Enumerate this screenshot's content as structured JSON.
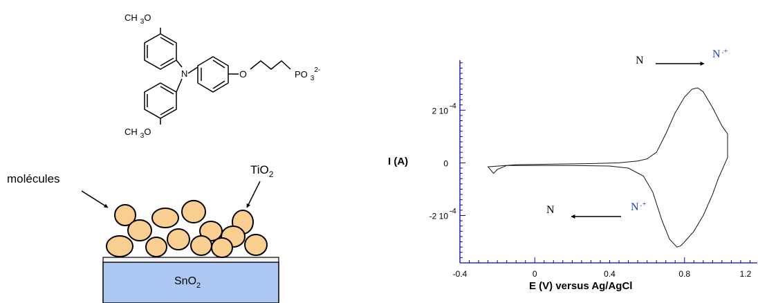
{
  "molecule": {
    "methoxy_top": {
      "ch": "CH",
      "sub": "3",
      "o": "O"
    },
    "methoxy_bottom": {
      "ch": "CH",
      "sub": "3",
      "o": "O"
    },
    "nitrogen": "N",
    "ether_oxygen": "O",
    "phosphonate": {
      "po": "PO",
      "sub": "3",
      "sup": "2-"
    }
  },
  "electrode": {
    "molecules_label": "molécules",
    "tio2_label": {
      "base": "TiO",
      "sub": "2"
    },
    "sno2_label": {
      "base": "SnO",
      "sub": "2"
    },
    "colors": {
      "particle_fill": "#f9cf91",
      "substrate_fill": "#adc8f2",
      "film_fill": "#f3f3f3"
    }
  },
  "chart_data": {
    "type": "line",
    "title": "",
    "xlabel": "E (V) versus Ag/AgCl",
    "ylabel": "I (A)",
    "xlim": [
      -0.4,
      1.2
    ],
    "ylim": [
      -0.00038,
      0.00039
    ],
    "x_ticks": [
      "-0.4",
      "0",
      "0.4",
      "0.8",
      "1.2"
    ],
    "y_ticks": [
      {
        "value": 0.0002,
        "base": "2 10",
        "exp": "-4"
      },
      {
        "value": 0,
        "base": "0",
        "exp": ""
      },
      {
        "value": -0.0002,
        "base": "-2 10",
        "exp": "-4"
      }
    ],
    "axis_color": "#0000cc",
    "series": [
      {
        "x": [
          -0.25,
          -0.1,
          0.1,
          0.3,
          0.45,
          0.55,
          0.6,
          0.65,
          0.7,
          0.75,
          0.8,
          0.84,
          0.87,
          0.9,
          0.95,
          1.0,
          1.03,
          1.03,
          0.98,
          0.95,
          0.9,
          0.85,
          0.8,
          0.78,
          0.76,
          0.72,
          0.68,
          0.63,
          0.58,
          0.5,
          0.4,
          0.2,
          0.0,
          -0.15,
          -0.2,
          -0.22,
          -0.25
        ],
        "y": [
          -1.5e-05,
          -7e-06,
          -5e-06,
          -3e-06,
          0.0,
          7e-06,
          1.5e-05,
          4e-05,
          0.00011,
          0.00019,
          0.00025,
          0.00028,
          0.000285,
          0.00027,
          0.00021,
          0.00014,
          0.00011,
          2e-05,
          -6e-05,
          -0.00012,
          -0.0002,
          -0.00026,
          -0.0003,
          -0.000315,
          -0.00032,
          -0.00029,
          -0.00022,
          -0.00011,
          -5e-05,
          -2e-05,
          -1.2e-05,
          -1e-05,
          -1e-05,
          -1e-05,
          -2.5e-05,
          -4e-05,
          -1.5e-05
        ]
      }
    ],
    "annotations": [
      {
        "from": "N",
        "to": "N",
        "to_sup": ".+",
        "direction": "right"
      },
      {
        "from": "N",
        "to": "N",
        "to_sup": ".+",
        "direction": "left"
      }
    ]
  }
}
